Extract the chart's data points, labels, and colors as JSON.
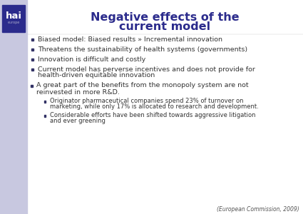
{
  "title_line1": "Negative effects of the",
  "title_line2": "current model",
  "title_color": "#2B2B8C",
  "bg_color": "#FFFFFF",
  "sidebar_color": "#C8C8E0",
  "logo_bg": "#2B2B8C",
  "logo_text": "hai",
  "logo_sub": "europe",
  "bullet_color": "#333366",
  "text_color": "#333333",
  "footer_color": "#555555",
  "bullets": [
    {
      "level": 0,
      "text": "Biased model: Biased results » Incremental innovation"
    },
    {
      "level": 0,
      "text": "Threatens the sustainability of health systems (governments)"
    },
    {
      "level": 0,
      "text": "Innovation is difficult and costly"
    },
    {
      "level": 0,
      "text": "Current model has perverse incentives and does not provide for\nhealth-driven equitable innovation"
    },
    {
      "level": -1,
      "text": "A great part of the benefits from the monopoly system are not\nreinvested in more R&D."
    },
    {
      "level": 1,
      "text": "Originator pharmaceutical companies spend 23% of turnover on\nmarketing, while only 17% is allocated to research and development."
    },
    {
      "level": 1,
      "text": "Considerable efforts have been shifted towards aggressive litigation\nand ever greening"
    }
  ],
  "footer": "(European Commission, 2009)",
  "title_fontsize": 11.5,
  "bullet_fontsize": 6.8,
  "subbullet_fontsize": 6.0,
  "footer_fontsize": 5.5
}
